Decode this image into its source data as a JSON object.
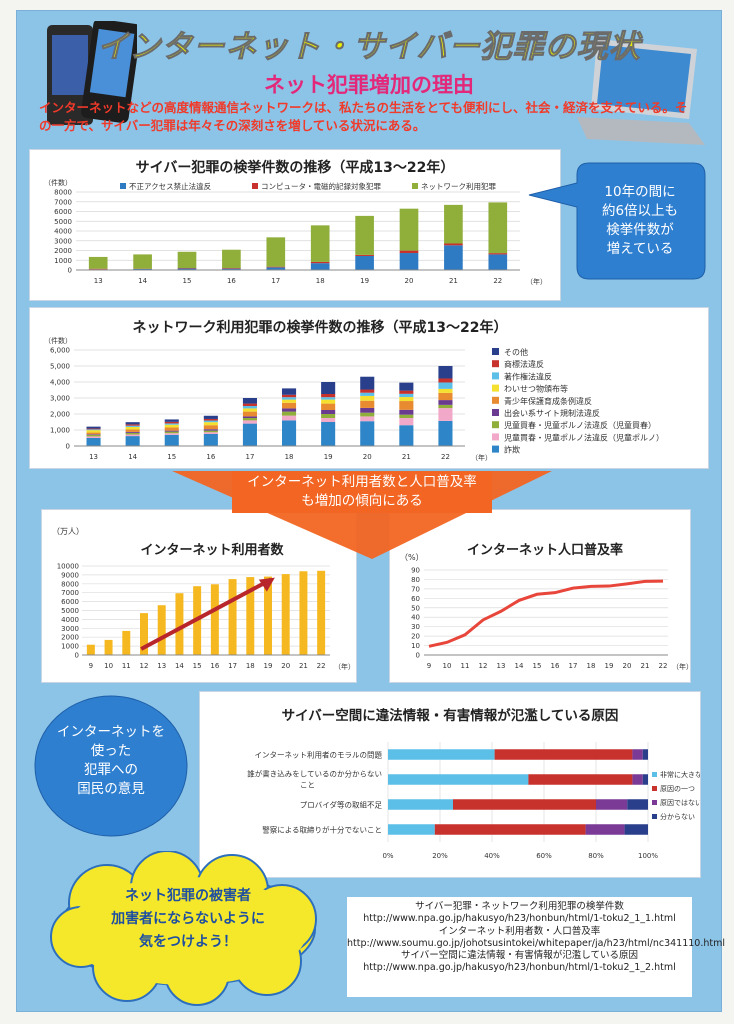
{
  "header": {
    "title": "インターネット・サイバー犯罪の現状",
    "subtitle": "ネット犯罪増加の理由",
    "intro": "インターネットなどの高度情報通信ネットワークは、私たちの生活をとても便利にし、社会・経済を支えている。その一方で、サイバー犯罪は年々その深刻さを増している状況にある。"
  },
  "callouts": {
    "growth": [
      "10年の間に",
      "約6倍以上も",
      "検挙件数が",
      "増えている"
    ],
    "arrow": [
      "インターネット利用者数と人口普及率",
      "も増加の傾向にある"
    ],
    "opinion": [
      "インターネットを",
      "使った",
      "犯罪への",
      "国民の意見"
    ],
    "advice": [
      "ネット犯罪の被害者",
      "加害者にならないように",
      "気をつけよう！"
    ]
  },
  "colors": {
    "blue": "#2e7bc4",
    "red": "#c8322d",
    "green": "#8fae3a",
    "yellow": "#f5b820",
    "darkred": "#b8262c",
    "navy": "#2a3f8c",
    "cyan": "#5bbfe8"
  },
  "chart_data": [
    {
      "type": "bar",
      "title": "サイバー犯罪の検挙件数の推移（平成13〜22年）",
      "ylabel": "（件数）",
      "xlabel": "（年）",
      "categories": [
        "13",
        "14",
        "15",
        "16",
        "17",
        "18",
        "19",
        "20",
        "21",
        "22"
      ],
      "ylim": [
        0,
        8000
      ],
      "yticks": [
        "0",
        "1000",
        "2000",
        "3000",
        "4000",
        "5000",
        "6000",
        "7000",
        "8000"
      ],
      "series": [
        {
          "name": "不正アクセス禁止法違反",
          "color": "#2e7bc4",
          "values": [
            70,
            100,
            150,
            140,
            270,
            700,
            1440,
            1740,
            2530,
            1600
          ]
        },
        {
          "name": "コンピュータ・電磁的記録対象犯罪",
          "color": "#c8322d",
          "values": [
            60,
            30,
            50,
            60,
            70,
            130,
            110,
            250,
            190,
            130
          ]
        },
        {
          "name": "ネットワーク利用犯罪",
          "color": "#8fae3a",
          "values": [
            1210,
            1470,
            1670,
            1880,
            3010,
            3750,
            4000,
            4300,
            3960,
            5200
          ]
        }
      ]
    },
    {
      "type": "bar",
      "title": "ネットワーク利用犯罪の検挙件数の推移（平成13〜22年）",
      "ylabel": "（件数）",
      "xlabel": "（年）",
      "categories": [
        "13",
        "14",
        "15",
        "16",
        "17",
        "18",
        "19",
        "20",
        "21",
        "22"
      ],
      "ylim": [
        0,
        6000
      ],
      "yticks": [
        "0",
        "1,000",
        "2,000",
        "3,000",
        "4,000",
        "5,000",
        "6,000"
      ],
      "series": [
        {
          "name": "詐欺",
          "color": "#2e86c8",
          "values": [
            500,
            620,
            700,
            750,
            1400,
            1600,
            1500,
            1550,
            1300,
            1570
          ]
        },
        {
          "name": "児童買春・児童ポルノ法違反（児童ポルノ）",
          "color": "#f2a8c8",
          "values": [
            100,
            100,
            100,
            110,
            200,
            300,
            250,
            300,
            450,
            800
          ]
        },
        {
          "name": "児童買春・児童ポルノ法違反（児童買春）",
          "color": "#8fae3a",
          "values": [
            100,
            100,
            100,
            100,
            150,
            250,
            250,
            230,
            210,
            200
          ]
        },
        {
          "name": "出会い系サイト規制法違反",
          "color": "#6a3a90",
          "values": [
            40,
            60,
            60,
            90,
            100,
            200,
            250,
            300,
            300,
            300
          ]
        },
        {
          "name": "青少年保護育成条例違反",
          "color": "#e88a30",
          "values": [
            100,
            150,
            200,
            250,
            300,
            350,
            400,
            450,
            550,
            450
          ]
        },
        {
          "name": "わいせつ物頒布等",
          "color": "#f5e030",
          "values": [
            150,
            160,
            170,
            190,
            200,
            200,
            250,
            300,
            250,
            250
          ]
        },
        {
          "name": "著作権法違反",
          "color": "#5bbfe8",
          "values": [
            50,
            80,
            80,
            100,
            150,
            150,
            150,
            200,
            200,
            400
          ]
        },
        {
          "name": "商標法違反",
          "color": "#c8322d",
          "values": [
            50,
            80,
            100,
            100,
            150,
            150,
            200,
            200,
            200,
            250
          ]
        },
        {
          "name": "その他",
          "color": "#2a3f8c",
          "values": [
            120,
            140,
            150,
            200,
            350,
            400,
            750,
            800,
            500,
            780
          ]
        }
      ]
    },
    {
      "type": "bar",
      "title": "インターネット利用者数",
      "ylabel": "（万人）",
      "xlabel": "（年）",
      "categories": [
        "9",
        "10",
        "11",
        "12",
        "13",
        "14",
        "15",
        "16",
        "17",
        "18",
        "19",
        "20",
        "21",
        "22"
      ],
      "ylim": [
        0,
        10000
      ],
      "yticks": [
        "0",
        "1000",
        "2000",
        "3000",
        "4000",
        "5000",
        "6000",
        "7000",
        "8000",
        "9000",
        "10000"
      ],
      "values": [
        1155,
        1694,
        2706,
        4708,
        5593,
        6942,
        7730,
        7948,
        8529,
        8754,
        8811,
        9091,
        9408,
        9462
      ]
    },
    {
      "type": "line",
      "title": "インターネット人口普及率",
      "ylabel": "（%）",
      "xlabel": "（年）",
      "x": [
        "9",
        "10",
        "11",
        "12",
        "13",
        "14",
        "15",
        "16",
        "17",
        "18",
        "19",
        "20",
        "21",
        "22"
      ],
      "ylim": [
        0,
        90
      ],
      "yticks": [
        "0",
        "10",
        "20",
        "30",
        "40",
        "50",
        "60",
        "70",
        "80",
        "90"
      ],
      "values": [
        9.2,
        13.4,
        21.4,
        37.1,
        46.3,
        57.8,
        64.3,
        66.0,
        70.8,
        72.6,
        73.0,
        75.3,
        78.0,
        78.2
      ]
    },
    {
      "type": "bar",
      "orientation": "horizontal-stacked-percent",
      "title": "サイバー空間に違法情報・有害情報が氾濫している原因",
      "categories": [
        "インターネット利用者のモラルの問題",
        "誰が書き込みをしているのか分からない こと",
        "プロバイダ等の取組不足",
        "警察による取締りが十分でないこと"
      ],
      "xticks": [
        "0%",
        "20%",
        "40%",
        "60%",
        "80%",
        "100%"
      ],
      "series": [
        {
          "name": "非常に大きな原因",
          "color": "#5bbfe8",
          "values": [
            41,
            54,
            25,
            18
          ]
        },
        {
          "name": "原因の一つ",
          "color": "#c8322d",
          "values": [
            53,
            40,
            55,
            58
          ]
        },
        {
          "name": "原因ではない",
          "color": "#7a3a96",
          "values": [
            4,
            4,
            12,
            15
          ]
        },
        {
          "name": "分からない",
          "color": "#2a3f8c",
          "values": [
            2,
            2,
            8,
            9
          ]
        }
      ]
    }
  ],
  "sources": [
    "サイバー犯罪・ネットワーク利用犯罪の検挙件数",
    "http://www.npa.go.jp/hakusyo/h23/honbun/html/1-toku2_1_1.html",
    "インターネット利用者数・人口普及率",
    "http://www.soumu.go.jp/johotsusintokei/whitepaper/ja/h23/html/nc341110.html",
    "サイバー空間に違法情報・有害情報が氾濫している原因",
    "http://www.npa.go.jp/hakusyo/h23/honbun/html/1-toku2_1_2.html"
  ]
}
